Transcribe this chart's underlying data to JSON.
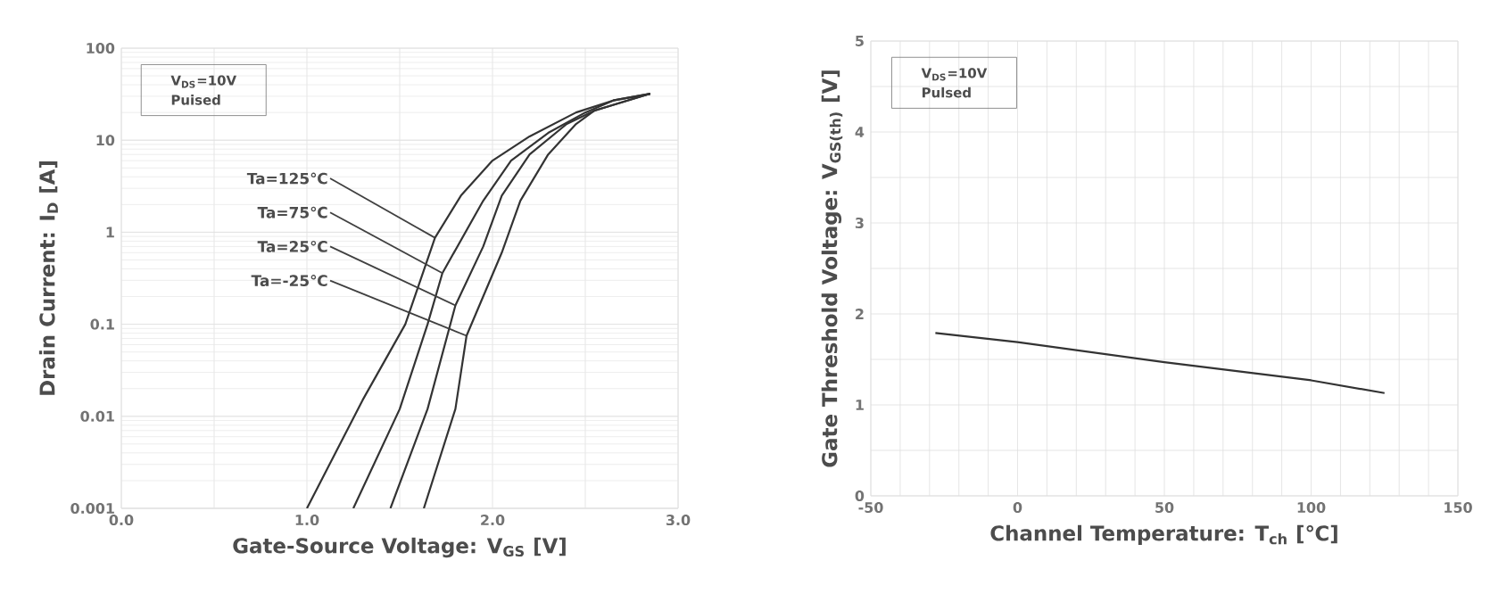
{
  "chart_data": [
    {
      "type": "line",
      "xlabel": "Gate-Source Voltage: V$_{GS}$ [V]",
      "ylabel": "Drain Current: I$_{D}$ [A]",
      "log": "y",
      "grid": true,
      "xlim": [
        0,
        3
      ],
      "ylim": [
        0.001,
        100
      ],
      "xticks": [
        {
          "value": 0,
          "label": "0.0"
        },
        {
          "value": 0.5,
          "label": null
        },
        {
          "value": 1,
          "label": "1.0"
        },
        {
          "value": 1.5,
          "label": null
        },
        {
          "value": 2,
          "label": "2.0"
        },
        {
          "value": 2.5,
          "label": null
        },
        {
          "value": 3,
          "label": "3.0"
        }
      ],
      "yticks": [
        0.001,
        0.01,
        0.1,
        1,
        10,
        100
      ],
      "series": [
        {
          "color": "#333333",
          "x": [
            1.0,
            1.3,
            1.53,
            1.69,
            1.83,
            2.0,
            2.2,
            2.45,
            2.65,
            2.85
          ],
          "values": [
            0.001,
            0.015,
            0.1,
            0.87,
            2.5,
            6,
            11,
            20,
            27,
            32
          ]
        },
        {
          "color": "#333333",
          "x": [
            1.25,
            1.5,
            1.65,
            1.73,
            1.95,
            2.1,
            2.3,
            2.5,
            2.65,
            2.85
          ],
          "values": [
            0.001,
            0.012,
            0.1,
            0.36,
            2.2,
            6,
            12,
            20,
            27,
            32
          ]
        },
        {
          "color": "#333333",
          "x": [
            1.45,
            1.65,
            1.8,
            1.95,
            2.05,
            2.2,
            2.4,
            2.55,
            2.85
          ],
          "values": [
            0.001,
            0.012,
            0.16,
            0.7,
            2.5,
            7,
            15,
            21,
            32
          ]
        },
        {
          "color": "#333333",
          "x": [
            1.63,
            1.8,
            1.86,
            2.05,
            2.15,
            2.3,
            2.45,
            2.55,
            2.85
          ],
          "values": [
            0.001,
            0.012,
            0.075,
            0.6,
            2.2,
            7,
            15,
            21,
            32
          ]
        }
      ],
      "annotations": [
        "V$_{DS}$=10V",
        "Puised",
        {
          "text": "Ta=125℃",
          "x": 1.69,
          "y": 0.87
        },
        {
          "text": "Ta=75℃",
          "x": 1.73,
          "y": 0.36
        },
        {
          "text": "Ta=25℃",
          "x": 1.8,
          "y": 0.16
        },
        {
          "text": "Ta=-25℃",
          "x": 1.86,
          "y": 0.075
        }
      ]
    },
    {
      "type": "line",
      "xlabel": "Channel Temperature: T$_{ch}$ [℃]",
      "ylabel": "Gate Threshold Voltage: V$_{GS(th)}$ [V]",
      "grid": true,
      "xlim": [
        -50,
        150
      ],
      "ylim": [
        0,
        5
      ],
      "xticks": [
        -50,
        {
          "value": -40,
          "label": null
        },
        {
          "value": -30,
          "label": null
        },
        {
          "value": -20,
          "label": null
        },
        {
          "value": -10,
          "label": null
        },
        0,
        {
          "value": 10,
          "label": null
        },
        {
          "value": 20,
          "label": null
        },
        {
          "value": 30,
          "label": null
        },
        {
          "value": 40,
          "label": null
        },
        50,
        {
          "value": 60,
          "label": null
        },
        {
          "value": 70,
          "label": null
        },
        {
          "value": 80,
          "label": null
        },
        {
          "value": 90,
          "label": null
        },
        100,
        {
          "value": 110,
          "label": null
        },
        {
          "value": 120,
          "label": null
        },
        {
          "value": 130,
          "label": null
        },
        {
          "value": 140,
          "label": null
        },
        150
      ],
      "yticks": [
        0,
        {
          "value": 0.5,
          "label": null
        },
        1,
        {
          "value": 1.5,
          "label": null
        },
        2,
        {
          "value": 2.5,
          "label": null
        },
        3,
        {
          "value": 3.5,
          "label": null
        },
        4,
        {
          "value": 4.5,
          "label": null
        },
        5
      ],
      "series": [
        {
          "color": "#333333",
          "x": [
            -28,
            0,
            50,
            100,
            125
          ],
          "values": [
            1.79,
            1.69,
            1.47,
            1.27,
            1.13
          ]
        }
      ],
      "annotations": [
        "V$_{DS}$=10V",
        "Pulsed"
      ]
    }
  ]
}
